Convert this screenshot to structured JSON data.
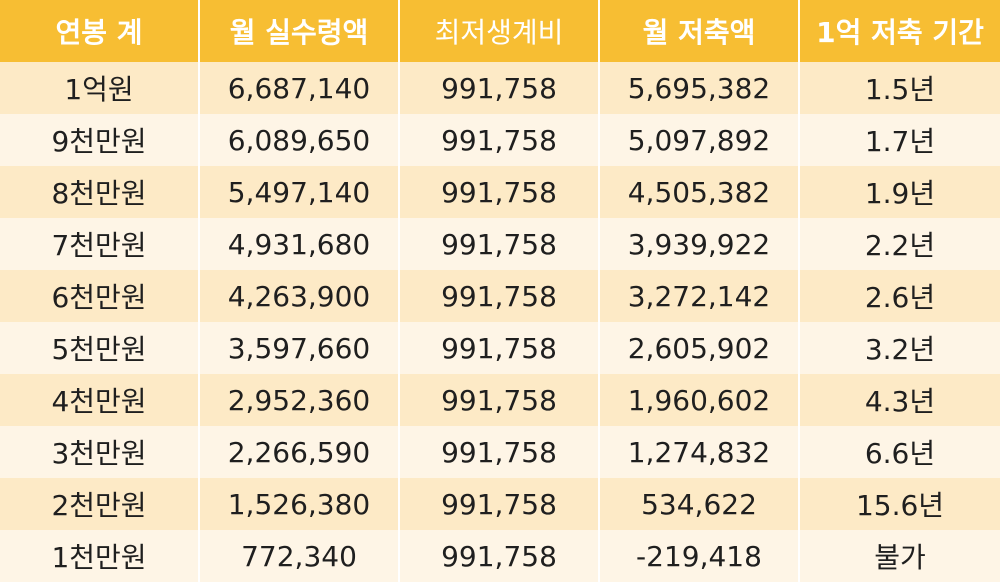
{
  "table": {
    "headers": [
      "연봉 계",
      "월 실수령액",
      "최저생계비",
      "월 저축액",
      "1억 저축 기간"
    ],
    "rows": [
      [
        "1억원",
        "6,687,140",
        "991,758",
        "5,695,382",
        "1.5년"
      ],
      [
        "9천만원",
        "6,089,650",
        "991,758",
        "5,097,892",
        "1.7년"
      ],
      [
        "8천만원",
        "5,497,140",
        "991,758",
        "4,505,382",
        "1.9년"
      ],
      [
        "7천만원",
        "4,931,680",
        "991,758",
        "3,939,922",
        "2.2년"
      ],
      [
        "6천만원",
        "4,263,900",
        "991,758",
        "3,272,142",
        "2.6년"
      ],
      [
        "5천만원",
        "3,597,660",
        "991,758",
        "2,605,902",
        "3.2년"
      ],
      [
        "4천만원",
        "2,952,360",
        "991,758",
        "1,960,602",
        "4.3년"
      ],
      [
        "3천만원",
        "2,266,590",
        "991,758",
        "1,274,832",
        "6.6년"
      ],
      [
        "2천만원",
        "1,526,380",
        "991,758",
        "534,622",
        "15.6년"
      ],
      [
        "1천만원",
        "772,340",
        "991,758",
        "-219,418",
        "불가"
      ]
    ]
  },
  "colors": {
    "header_bg": "#f7be33",
    "row_odd_bg": "#fdeac6",
    "row_even_bg": "#fef5e6"
  }
}
